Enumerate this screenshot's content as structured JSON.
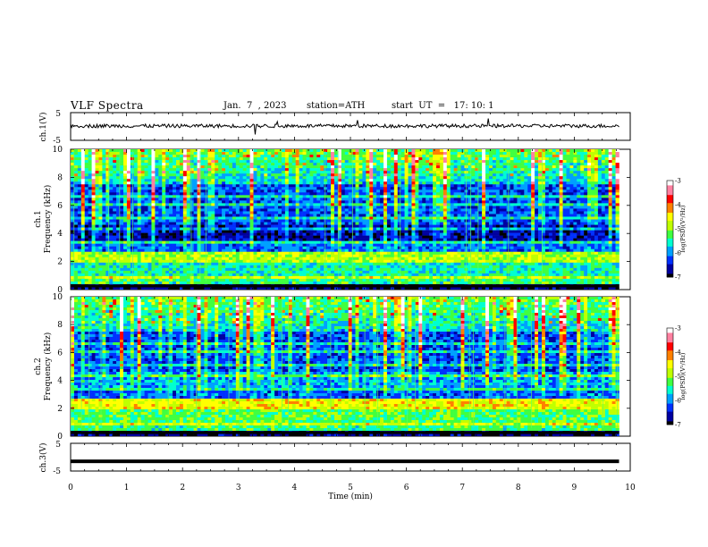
{
  "header": {
    "title": "VLF Spectra",
    "date": "Jan.  7  , 2023",
    "station": "station=ATH",
    "start": "start  UT  =   17: 10: 1"
  },
  "chart_data": [
    {
      "type": "line",
      "panel": "ch1-waveform",
      "ylabel": "ch.1(V)",
      "ylim": [
        -5,
        5
      ],
      "y_ticks": [
        "5",
        "-5"
      ],
      "xlim": [
        0,
        10
      ],
      "description_level_V": 0.2
    },
    {
      "type": "heatmap",
      "panel": "ch1-spectrogram",
      "ylabel_line1": "ch.1",
      "ylabel_line2": "Frequency (kHz)",
      "ylim": [
        0,
        10
      ],
      "y_ticks": [
        "0",
        "2",
        "4",
        "6",
        "8",
        "10"
      ],
      "xlim": [
        0,
        10
      ],
      "data_end_min": 9.8,
      "colorbar": {
        "label": "log(PSD)(V²/Hz)",
        "range": [
          -7,
          -3
        ],
        "ticks": [
          "-3",
          "-4",
          "-5",
          "-6",
          "-7"
        ]
      }
    },
    {
      "type": "heatmap",
      "panel": "ch2-spectrogram",
      "ylabel_line1": "ch.2",
      "ylabel_line2": "Frequency (kHz)",
      "ylim": [
        0,
        10
      ],
      "y_ticks": [
        "0",
        "2",
        "4",
        "6",
        "8",
        "10"
      ],
      "xlim": [
        0,
        10
      ],
      "data_end_min": 9.8,
      "colorbar": {
        "label": "log(PSD)(V²/Hz)",
        "range": [
          -7,
          -3
        ],
        "ticks": [
          "-3",
          "-4",
          "-5",
          "-6",
          "-7"
        ]
      }
    },
    {
      "type": "line",
      "panel": "ch3-waveform",
      "ylabel": "ch.3(V)",
      "ylim": [
        -5,
        5
      ],
      "y_ticks": [
        "5",
        "-5"
      ],
      "xlim": [
        0,
        10
      ],
      "constant_level_V": -1.5
    }
  ],
  "x_axis": {
    "label": "Time  (min)",
    "ticks": [
      "0",
      "1",
      "2",
      "3",
      "4",
      "5",
      "6",
      "7",
      "8",
      "9",
      "10"
    ],
    "range": [
      0,
      10
    ]
  },
  "colors": {
    "colormap": [
      "#000000",
      "#0000a0",
      "#0030ff",
      "#00a0ff",
      "#00ffd0",
      "#40ff40",
      "#c0ff00",
      "#ffff00",
      "#ff8000",
      "#ff0000",
      "#ff80a0",
      "#ffffff"
    ]
  }
}
